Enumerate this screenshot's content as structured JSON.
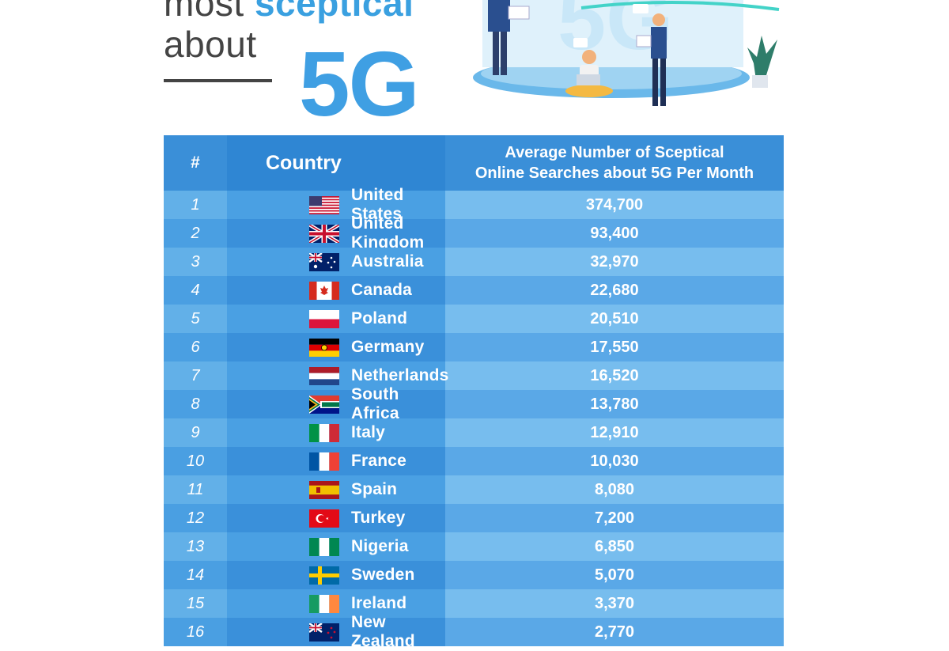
{
  "headline": {
    "line1": "most ",
    "line1_accent": "sceptical",
    "line2": "about",
    "big": "5G"
  },
  "chart_data": {
    "type": "table",
    "columns": [
      "#",
      "Country",
      "Average Number of Sceptical Online Searches about 5G Per Month"
    ],
    "header": {
      "num": "#",
      "country": "Country",
      "avg_line1": "Average Number of Sceptical",
      "avg_line2": "Online Searches about 5G Per Month"
    },
    "rows": [
      {
        "rank": "1",
        "country": "United States",
        "value": "374,700",
        "flag": "us-flag"
      },
      {
        "rank": "2",
        "country": "United Kingdom",
        "value": "93,400",
        "flag": "uk-flag"
      },
      {
        "rank": "3",
        "country": "Australia",
        "value": "32,970",
        "flag": "au-flag"
      },
      {
        "rank": "4",
        "country": "Canada",
        "value": "22,680",
        "flag": "ca-flag"
      },
      {
        "rank": "5",
        "country": "Poland",
        "value": "20,510",
        "flag": "pl-flag"
      },
      {
        "rank": "6",
        "country": "Germany",
        "value": "17,550",
        "flag": "de-flag"
      },
      {
        "rank": "7",
        "country": "Netherlands",
        "value": "16,520",
        "flag": "nl-flag"
      },
      {
        "rank": "8",
        "country": "South Africa",
        "value": "13,780",
        "flag": "za-flag"
      },
      {
        "rank": "9",
        "country": "Italy",
        "value": "12,910",
        "flag": "it-flag"
      },
      {
        "rank": "10",
        "country": "France",
        "value": "10,030",
        "flag": "fr-flag"
      },
      {
        "rank": "11",
        "country": "Spain",
        "value": "8,080",
        "flag": "es-flag"
      },
      {
        "rank": "12",
        "country": "Turkey",
        "value": "7,200",
        "flag": "tr-flag"
      },
      {
        "rank": "13",
        "country": "Nigeria",
        "value": "6,850",
        "flag": "ng-flag"
      },
      {
        "rank": "14",
        "country": "Sweden",
        "value": "5,070",
        "flag": "se-flag"
      },
      {
        "rank": "15",
        "country": "Ireland",
        "value": "3,370",
        "flag": "ie-flag"
      },
      {
        "rank": "16",
        "country": "New Zealand",
        "value": "2,770",
        "flag": "nz-flag"
      }
    ]
  },
  "colors": {
    "accent": "#3aa0e0",
    "header": "#3a8fd8",
    "row_light": "#77bdee",
    "row_dark": "#5aa8e7"
  }
}
